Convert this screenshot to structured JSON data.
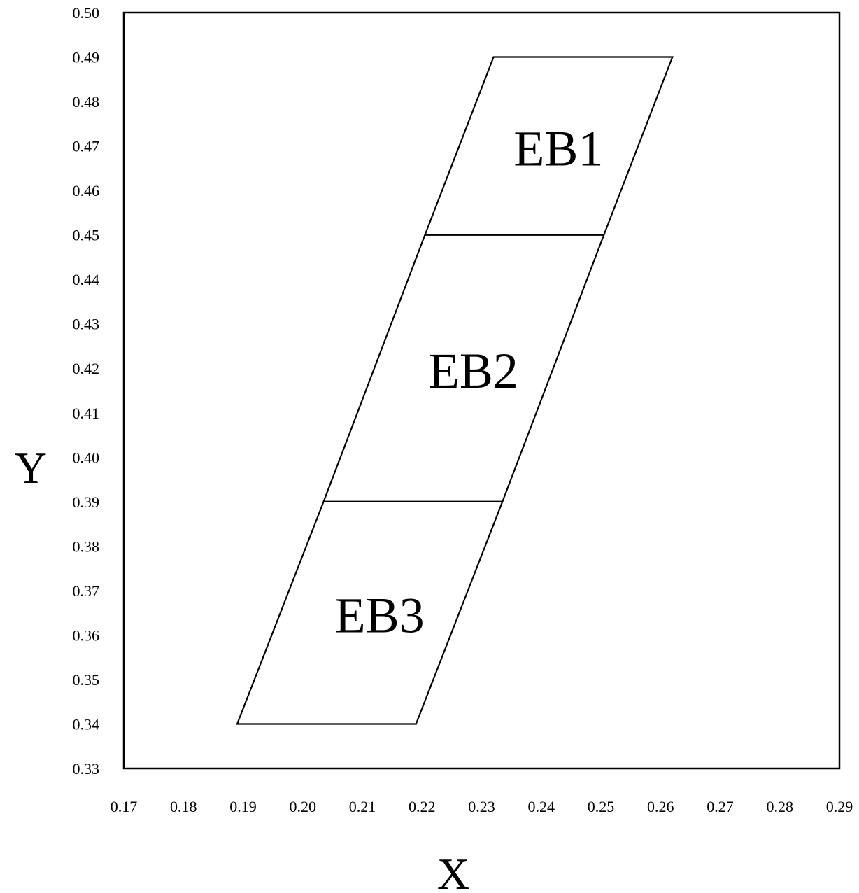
{
  "chart_data": {
    "type": "area",
    "xlabel": "X",
    "ylabel": "Y",
    "xlim": [
      0.17,
      0.29
    ],
    "ylim": [
      0.33,
      0.5
    ],
    "x_ticks": [
      "0.17",
      "0.18",
      "0.19",
      "0.20",
      "0.21",
      "0.22",
      "0.23",
      "0.24",
      "0.25",
      "0.26",
      "0.27",
      "0.28",
      "0.29"
    ],
    "y_ticks": [
      "0.50",
      "0.49",
      "0.48",
      "0.47",
      "0.46",
      "0.45",
      "0.44",
      "0.43",
      "0.42",
      "0.41",
      "0.40",
      "0.39",
      "0.38",
      "0.37",
      "0.36",
      "0.35",
      "0.34",
      "0.33"
    ],
    "grid": false,
    "regions": [
      {
        "name": "EB1",
        "vertices": [
          [
            0.232,
            0.49
          ],
          [
            0.262,
            0.49
          ],
          [
            0.2505,
            0.45
          ],
          [
            0.2205,
            0.45
          ]
        ]
      },
      {
        "name": "EB2",
        "vertices": [
          [
            0.2205,
            0.45
          ],
          [
            0.2505,
            0.45
          ],
          [
            0.2335,
            0.39
          ],
          [
            0.2035,
            0.39
          ]
        ]
      },
      {
        "name": "EB3",
        "vertices": [
          [
            0.2035,
            0.39
          ],
          [
            0.2335,
            0.39
          ],
          [
            0.219,
            0.34
          ],
          [
            0.189,
            0.34
          ]
        ]
      }
    ]
  }
}
